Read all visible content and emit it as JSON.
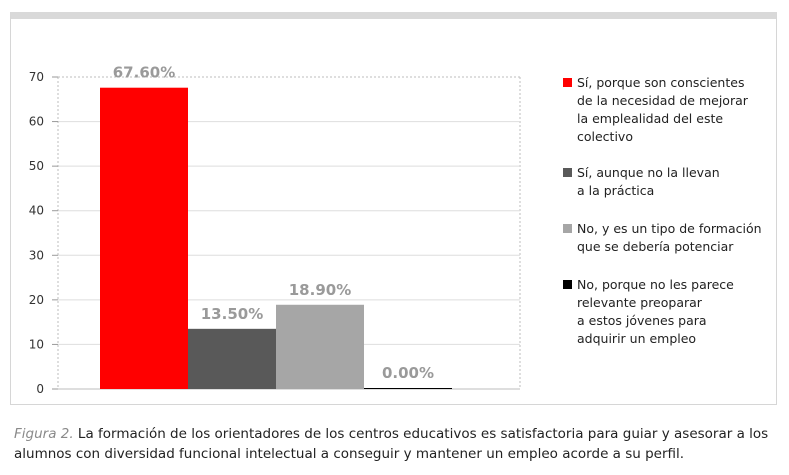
{
  "chart_data": {
    "type": "bar",
    "categories": [
      "Sí, porque son conscientes\nde la necesidad de mejorar\nla emplealidad del este\ncolectivo",
      "Sí, aunque no la llevan\na la práctica",
      "No, y es un tipo de formación\nque se debería potenciar",
      "No, porque no les parece\nrelevante preoparar\na estos jóvenes para\nadquirir un empleo"
    ],
    "values": [
      67.6,
      13.5,
      18.9,
      0.0
    ],
    "data_labels": [
      "67.60%",
      "13.50%",
      "18.90%",
      "0.00%"
    ],
    "colors": [
      "#ff0000",
      "#595959",
      "#a6a6a6",
      "#000000"
    ],
    "ylim": [
      0,
      70
    ],
    "yticks": [
      0,
      10,
      20,
      30,
      40,
      50,
      60,
      70
    ],
    "grid": true,
    "legend": "right"
  },
  "caption": {
    "figure_label": "Figura 2.",
    "text": " La formación de los orientadores de los centros educativos es satisfactoria para guiar y asesorar a los alumnos con diversidad funcional intelectual a conseguir y mantener un empleo acorde a su perfil."
  }
}
